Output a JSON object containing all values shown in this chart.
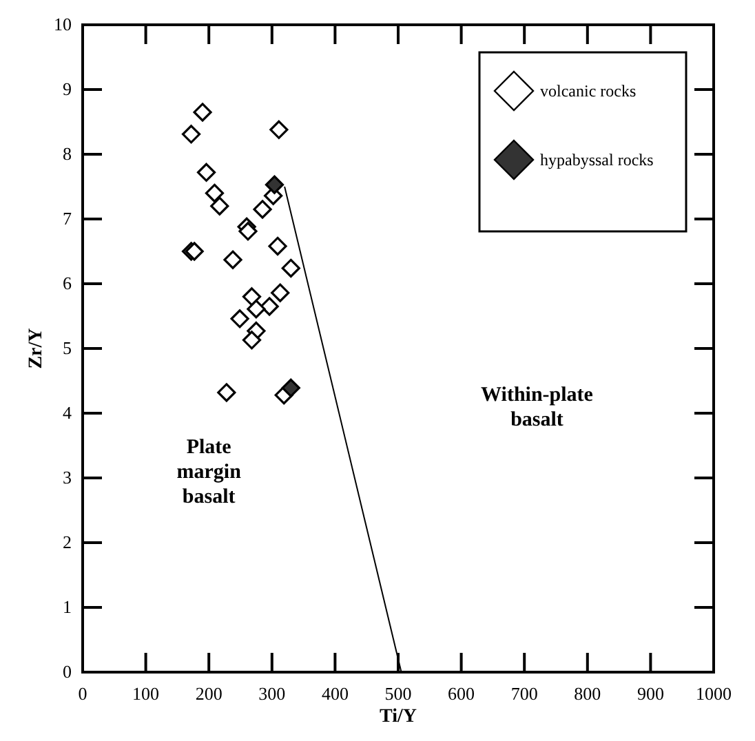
{
  "chart_data": {
    "type": "scatter",
    "xlabel": "Ti/Y",
    "ylabel": "Zr/Y",
    "xlim": [
      0,
      1000
    ],
    "xticks": [
      0,
      100,
      200,
      300,
      400,
      500,
      600,
      700,
      800,
      900,
      1000
    ],
    "ylim": [
      0,
      10
    ],
    "yticks": [
      0,
      1,
      2,
      3,
      4,
      5,
      6,
      7,
      8,
      9,
      10
    ],
    "grid": false,
    "legend": "top right",
    "marker": "diamond",
    "series": [
      {
        "name": "volcanic rocks",
        "color": "#ffffff",
        "x": [
          190,
          311,
          196,
          209,
          302,
          217,
          285,
          260,
          262,
          309,
          238,
          330,
          268,
          313,
          296,
          275,
          249,
          275,
          268,
          228,
          319,
          172,
          172,
          177
        ],
        "values": [
          8.65,
          8.38,
          7.72,
          7.4,
          7.36,
          7.2,
          7.15,
          6.88,
          6.81,
          6.58,
          6.37,
          6.24,
          5.8,
          5.86,
          5.65,
          5.61,
          5.46,
          5.27,
          5.13,
          4.32,
          4.28,
          8.31,
          6.5,
          6.5
        ]
      },
      {
        "name": "hypabyssal rocks",
        "color": "#333333",
        "x": [
          304,
          330
        ],
        "values": [
          7.53,
          4.39
        ]
      },
      {
        "type": "line",
        "color": "#000000",
        "marker": "none",
        "x": [
          320,
          505
        ],
        "values": [
          7.5,
          0
        ]
      }
    ],
    "annotations": [
      "Plate\nmargin\nbasalt",
      "Within-plate\nbasalt"
    ]
  }
}
